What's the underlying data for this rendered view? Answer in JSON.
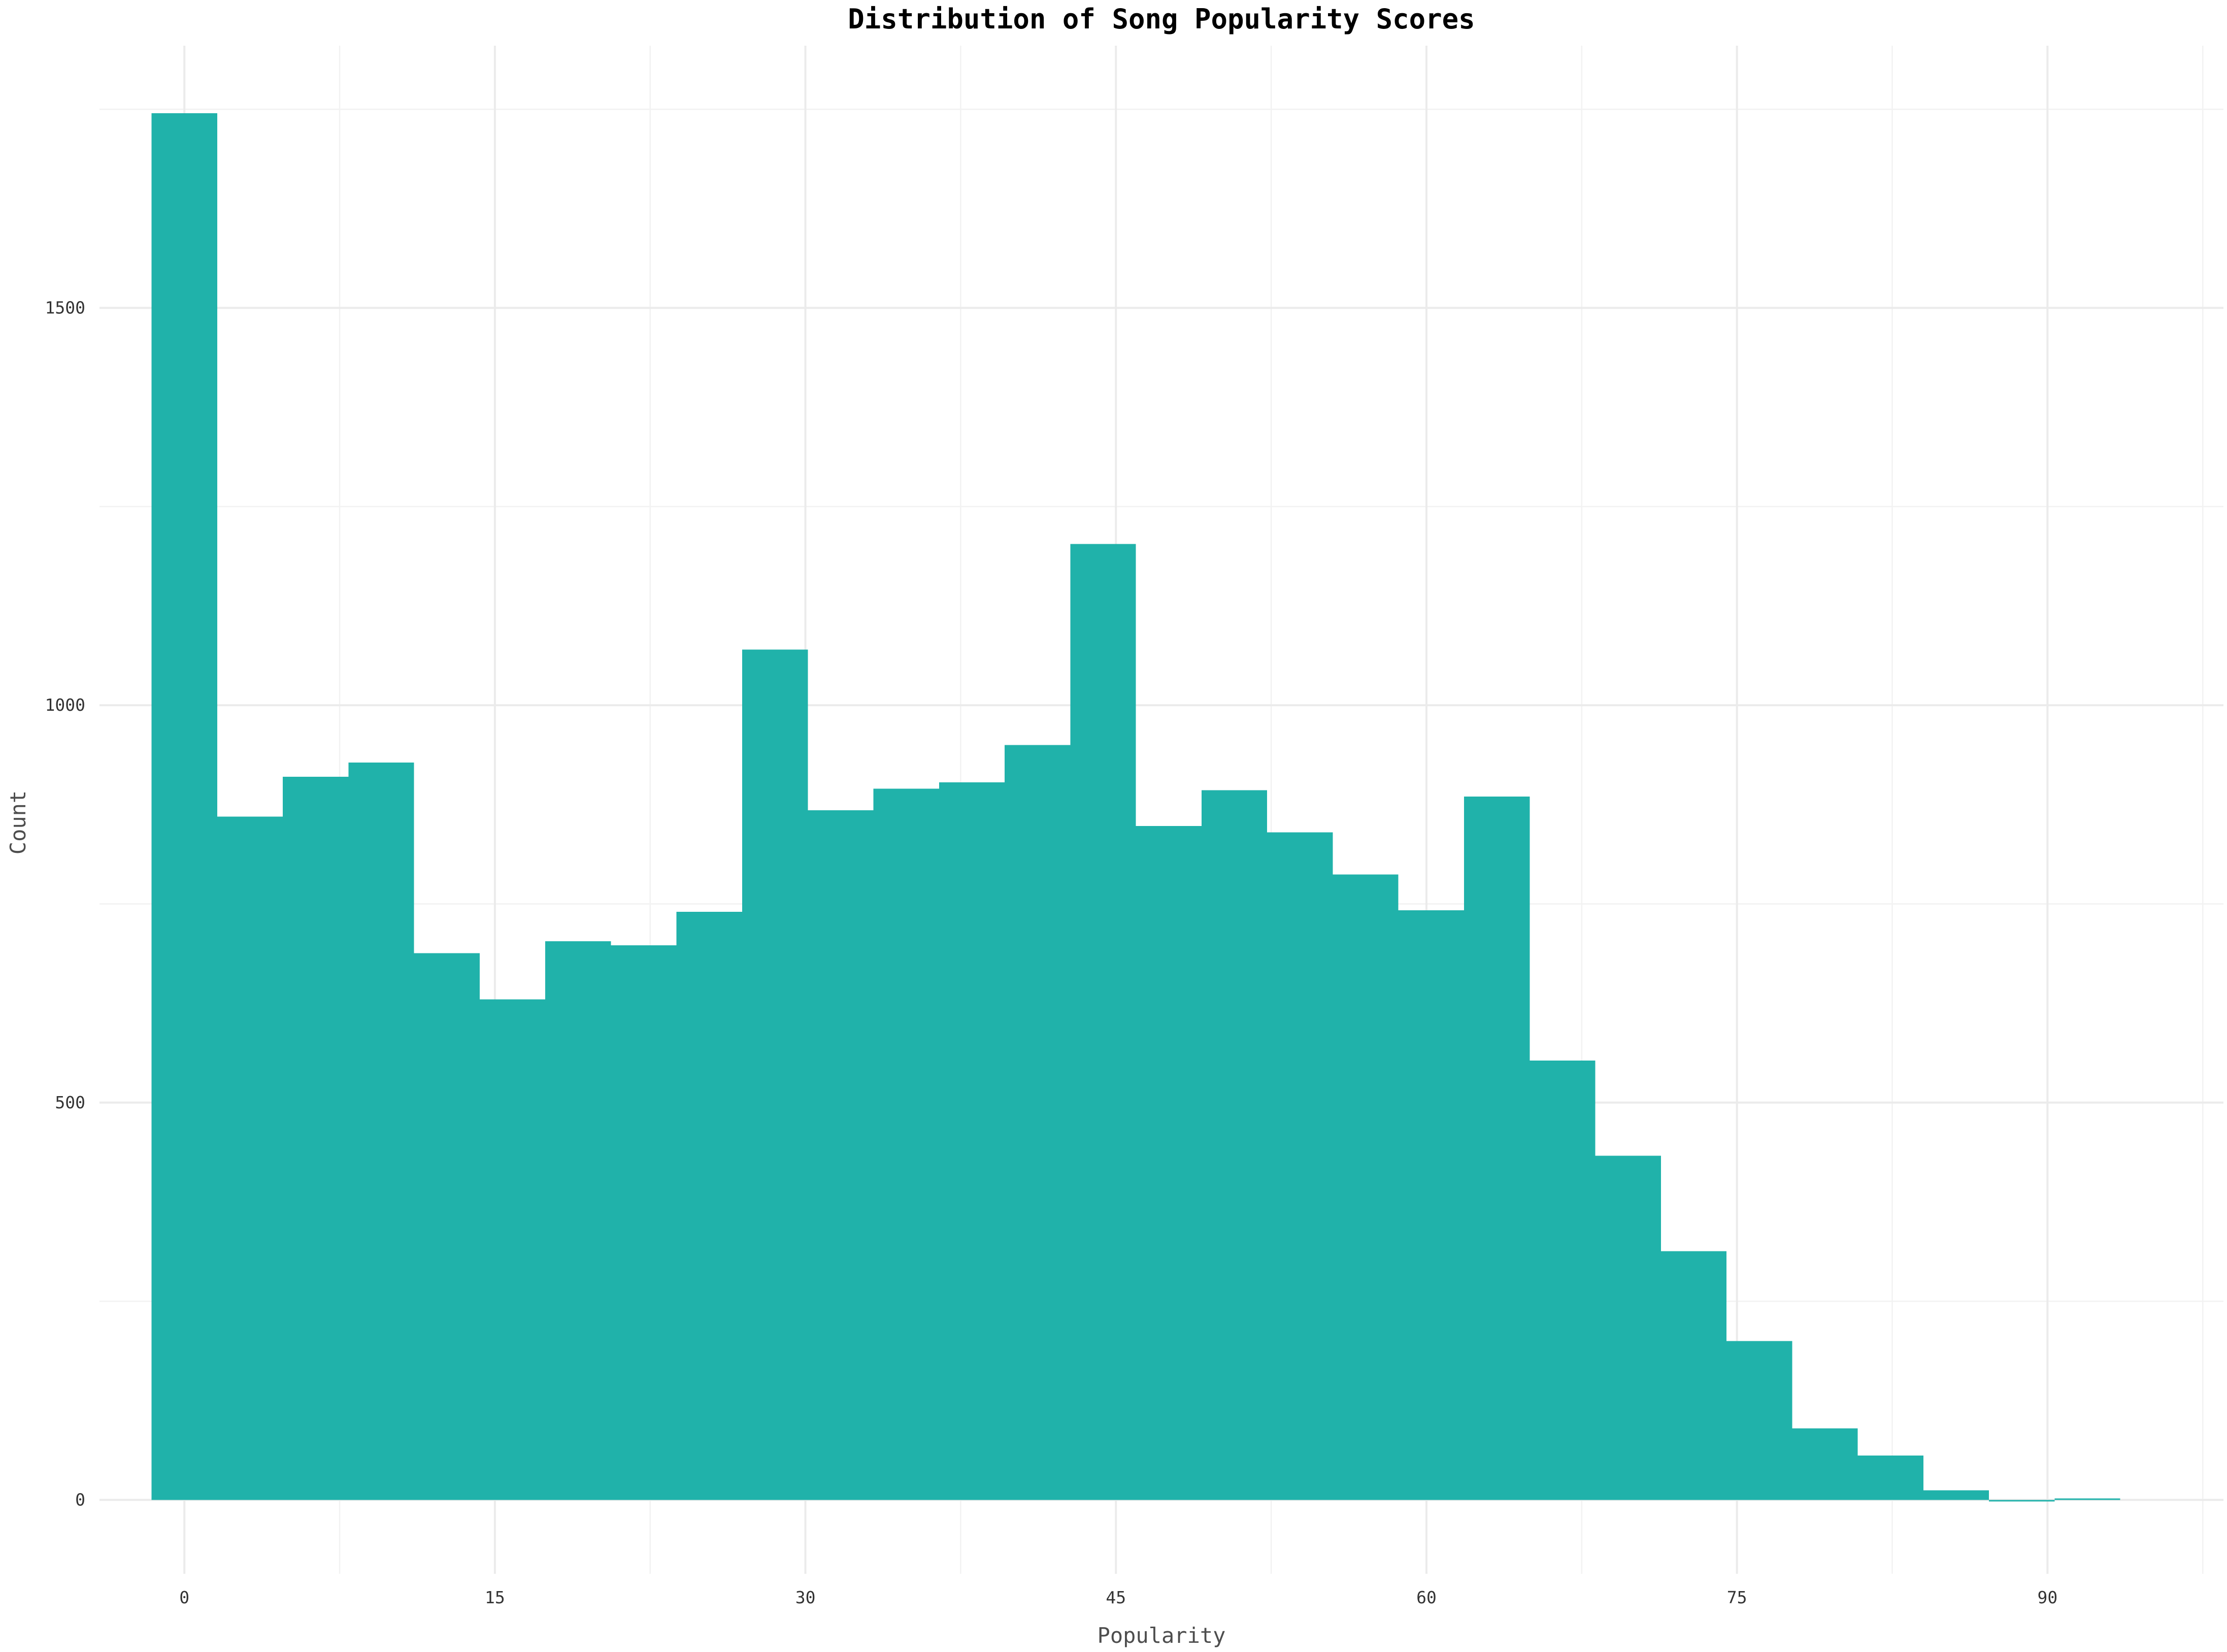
{
  "chart_data": {
    "type": "bar",
    "title": "Distribution of Song Popularity Scores",
    "xlabel": "Popularity",
    "ylabel": "Count",
    "bin_width": 3.17,
    "x_bin_starts": [
      -1.585,
      1.585,
      4.755,
      7.925,
      11.095,
      14.265,
      17.435,
      20.605,
      23.775,
      26.945,
      30.115,
      33.285,
      36.455,
      39.625,
      42.795,
      45.965,
      49.135,
      52.305,
      55.475,
      58.645,
      61.815,
      64.985,
      68.155,
      71.325,
      74.495,
      77.665,
      80.835,
      84.005,
      87.175,
      90.345
    ],
    "values": [
      1745,
      860,
      910,
      928,
      688,
      630,
      703,
      698,
      740,
      1070,
      868,
      895,
      903,
      950,
      1203,
      848,
      893,
      840,
      787,
      742,
      885,
      553,
      433,
      313,
      200,
      90,
      56,
      12,
      0,
      2
    ],
    "xlim": [
      -4.1,
      98.5
    ],
    "ylim": [
      -93,
      1830
    ],
    "x_ticks": [
      0,
      15,
      30,
      45,
      60,
      75,
      90
    ],
    "y_ticks": [
      0,
      500,
      1000,
      1500
    ],
    "grid": true,
    "bar_color": "#20b2aa"
  }
}
